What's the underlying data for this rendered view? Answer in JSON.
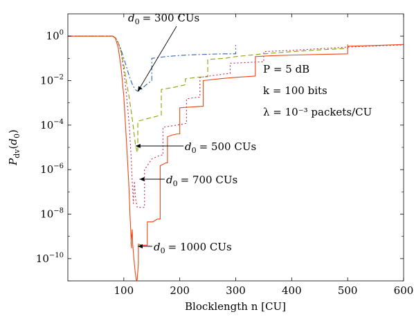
{
  "chart_data": {
    "type": "line",
    "xlabel": "Blocklength n [CU]",
    "ylabel": "P_dv(d_0)",
    "yscale": "log",
    "xlim": [
      0,
      600
    ],
    "ylim": [
      1e-11,
      10
    ],
    "x_ticks": [
      "100",
      "200",
      "300",
      "400",
      "500",
      "600"
    ],
    "y_ticks": [
      {
        "mant": "10",
        "exp": "0",
        "value": 1
      },
      {
        "mant": "10",
        "exp": "−2",
        "value": 0.01
      },
      {
        "mant": "10",
        "exp": "−4",
        "value": 0.0001
      },
      {
        "mant": "10",
        "exp": "−6",
        "value": 1e-06
      },
      {
        "mant": "10",
        "exp": "−8",
        "value": 1e-08
      },
      {
        "mant": "10",
        "exp": "−10",
        "value": 1e-10
      }
    ],
    "grid": false,
    "legend": "none",
    "params": {
      "power": "P = 5 dB",
      "k": "k = 100 bits",
      "lambda": "λ = 10⁻³ packets/CU"
    },
    "series": [
      {
        "color": "#2a5fb0",
        "dash": "7 3 2 3",
        "points": [
          [
            0,
            1.0
          ],
          [
            80,
            1.0
          ],
          [
            85,
            0.85
          ],
          [
            90,
            0.5
          ],
          [
            95,
            0.25
          ],
          [
            100,
            0.1
          ],
          [
            105,
            0.04
          ],
          [
            110,
            0.015
          ],
          [
            115,
            0.007
          ],
          [
            120,
            0.004
          ],
          [
            125,
            0.0033
          ],
          [
            130,
            0.0037
          ],
          [
            135,
            0.005
          ],
          [
            140,
            0.0065
          ],
          [
            145,
            0.008
          ],
          [
            150,
            0.01
          ],
          [
            150,
            0.1
          ],
          [
            175,
            0.12
          ],
          [
            200,
            0.135
          ],
          [
            225,
            0.145
          ],
          [
            250,
            0.152
          ],
          [
            275,
            0.16
          ],
          [
            300,
            0.16
          ],
          [
            300,
            0.4
          ]
        ]
      },
      {
        "color": "#8aa000",
        "dash": "7 4",
        "points": [
          [
            0,
            1.0
          ],
          [
            80,
            1.0
          ],
          [
            85,
            0.85
          ],
          [
            90,
            0.5
          ],
          [
            95,
            0.22
          ],
          [
            100,
            0.05
          ],
          [
            105,
            0.008
          ],
          [
            110,
            0.0015
          ],
          [
            115,
            0.0002
          ],
          [
            118,
            5e-05
          ],
          [
            121,
            1.2e-05
          ],
          [
            124,
            6e-06
          ],
          [
            125,
            6e-06
          ],
          [
            125,
            0.00015
          ],
          [
            150,
            0.00022
          ],
          [
            167,
            0.00028
          ],
          [
            167,
            0.004
          ],
          [
            190,
            0.005
          ],
          [
            210,
            0.0065
          ],
          [
            210,
            0.012
          ],
          [
            230,
            0.014
          ],
          [
            250,
            0.015
          ],
          [
            250,
            0.09
          ],
          [
            280,
            0.1
          ],
          [
            300,
            0.12
          ],
          [
            350,
            0.16
          ],
          [
            400,
            0.2
          ],
          [
            450,
            0.24
          ],
          [
            500,
            0.28
          ],
          [
            500,
            0.55
          ]
        ]
      },
      {
        "color": "#c0284c",
        "dash": "2 3",
        "points": [
          [
            0,
            1.0
          ],
          [
            80,
            1.0
          ],
          [
            85,
            0.85
          ],
          [
            90,
            0.5
          ],
          [
            95,
            0.2
          ],
          [
            100,
            0.03
          ],
          [
            105,
            0.002
          ],
          [
            110,
            8e-05
          ],
          [
            113,
            4e-06
          ],
          [
            115,
            3e-07
          ],
          [
            117,
            3e-08
          ],
          [
            119,
            3e-07
          ],
          [
            121,
            5e-08
          ],
          [
            124,
            2e-08
          ],
          [
            130,
            2e-08
          ],
          [
            137,
            2e-08
          ],
          [
            137,
            1e-06
          ],
          [
            150,
            3e-06
          ],
          [
            165,
            4.5e-06
          ],
          [
            170,
            4.5e-06
          ],
          [
            170,
            8e-05
          ],
          [
            195,
            0.0001
          ],
          [
            212,
            0.00012
          ],
          [
            212,
            0.0015
          ],
          [
            225,
            0.0017
          ],
          [
            236,
            0.0018
          ],
          [
            236,
            0.014
          ],
          [
            260,
            0.017
          ],
          [
            280,
            0.02
          ],
          [
            290,
            0.021
          ],
          [
            290,
            0.06
          ],
          [
            320,
            0.065
          ],
          [
            348,
            0.07
          ],
          [
            350,
            0.07
          ],
          [
            350,
            0.2
          ],
          [
            400,
            0.23
          ],
          [
            450,
            0.27
          ],
          [
            500,
            0.32
          ],
          [
            550,
            0.36
          ],
          [
            600,
            0.4
          ]
        ]
      },
      {
        "color": "#ee4411",
        "dash": "",
        "points": [
          [
            0,
            1.0
          ],
          [
            80,
            1.0
          ],
          [
            85,
            0.8
          ],
          [
            90,
            0.3
          ],
          [
            95,
            0.04
          ],
          [
            100,
            0.002
          ],
          [
            103,
            0.0001
          ],
          [
            106,
            5e-06
          ],
          [
            109,
            2e-07
          ],
          [
            111,
            1e-08
          ],
          [
            113,
            8e-10
          ],
          [
            114,
            3e-10
          ],
          [
            113,
            5e-10
          ],
          [
            115,
            2e-09
          ],
          [
            116,
            4e-10
          ],
          [
            118,
            1e-10
          ],
          [
            120,
            3e-11
          ],
          [
            122,
            1.2e-11
          ],
          [
            123,
            1e-11
          ],
          [
            124,
            1.2e-11
          ],
          [
            126,
            6e-11
          ],
          [
            126,
            4.5e-10
          ],
          [
            132,
            4e-10
          ],
          [
            142,
            4e-10
          ],
          [
            142,
            4.5e-09
          ],
          [
            152,
            4.5e-09
          ],
          [
            160,
            6e-09
          ],
          [
            165,
            6e-09
          ],
          [
            165,
            1.5e-06
          ],
          [
            175,
            2e-06
          ],
          [
            178,
            2e-06
          ],
          [
            178,
            3e-05
          ],
          [
            185,
            3.5e-05
          ],
          [
            195,
            4e-05
          ],
          [
            200,
            4e-05
          ],
          [
            200,
            0.0006
          ],
          [
            220,
            0.00065
          ],
          [
            240,
            0.0007
          ],
          [
            242,
            0.0007
          ],
          [
            242,
            0.01
          ],
          [
            270,
            0.012
          ],
          [
            300,
            0.014
          ],
          [
            335,
            0.016
          ],
          [
            335,
            0.12
          ],
          [
            360,
            0.13
          ],
          [
            400,
            0.14
          ],
          [
            450,
            0.15
          ],
          [
            500,
            0.16
          ],
          [
            500,
            0.35
          ],
          [
            550,
            0.38
          ],
          [
            600,
            0.42
          ]
        ]
      }
    ],
    "annotations": [
      {
        "id": "d300",
        "label": "= 300 CUs",
        "target": [
          125,
          0.0033
        ]
      },
      {
        "id": "d500",
        "label": "= 500 CUs",
        "target": [
          121,
          6e-06
        ]
      },
      {
        "id": "d700",
        "label": "= 700 CUs",
        "target": [
          128,
          3e-08
        ]
      },
      {
        "id": "d1000",
        "label": "= 1000 CUs",
        "target": [
          125,
          5e-10
        ]
      }
    ]
  }
}
